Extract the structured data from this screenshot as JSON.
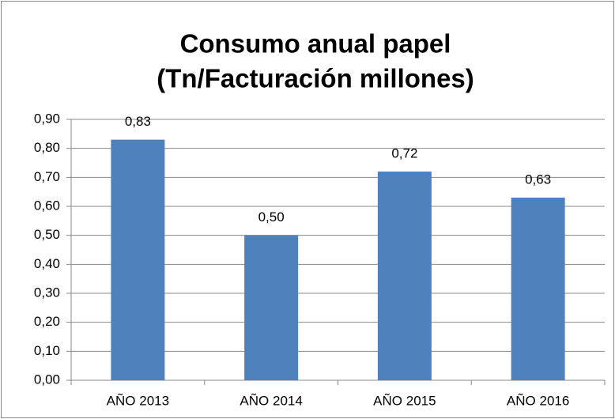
{
  "chart_data": {
    "type": "bar",
    "title": [
      "Consumo anual papel",
      "(Tn/Facturación millones)"
    ],
    "categories": [
      "AÑO 2013",
      "AÑO 2014",
      "AÑO 2015",
      "AÑO 2016"
    ],
    "values": [
      0.83,
      0.5,
      0.72,
      0.63
    ],
    "value_labels": [
      "0,83",
      "0,50",
      "0,72",
      "0,63"
    ],
    "color": "#4f81bd",
    "ylim": [
      0,
      0.9
    ],
    "yticks": [
      {
        "value": 0,
        "label": "0,00"
      },
      {
        "value": 0.1,
        "label": "0,10"
      },
      {
        "value": 0.2,
        "label": "0,20"
      },
      {
        "value": 0.3,
        "label": "0,30"
      },
      {
        "value": 0.4,
        "label": "0,40"
      },
      {
        "value": 0.5,
        "label": "0,50"
      },
      {
        "value": 0.6,
        "label": "0,60"
      },
      {
        "value": 0.7,
        "label": "0,70"
      },
      {
        "value": 0.8,
        "label": "0,80"
      },
      {
        "value": 0.9,
        "label": "0,90"
      }
    ],
    "grid": true
  }
}
